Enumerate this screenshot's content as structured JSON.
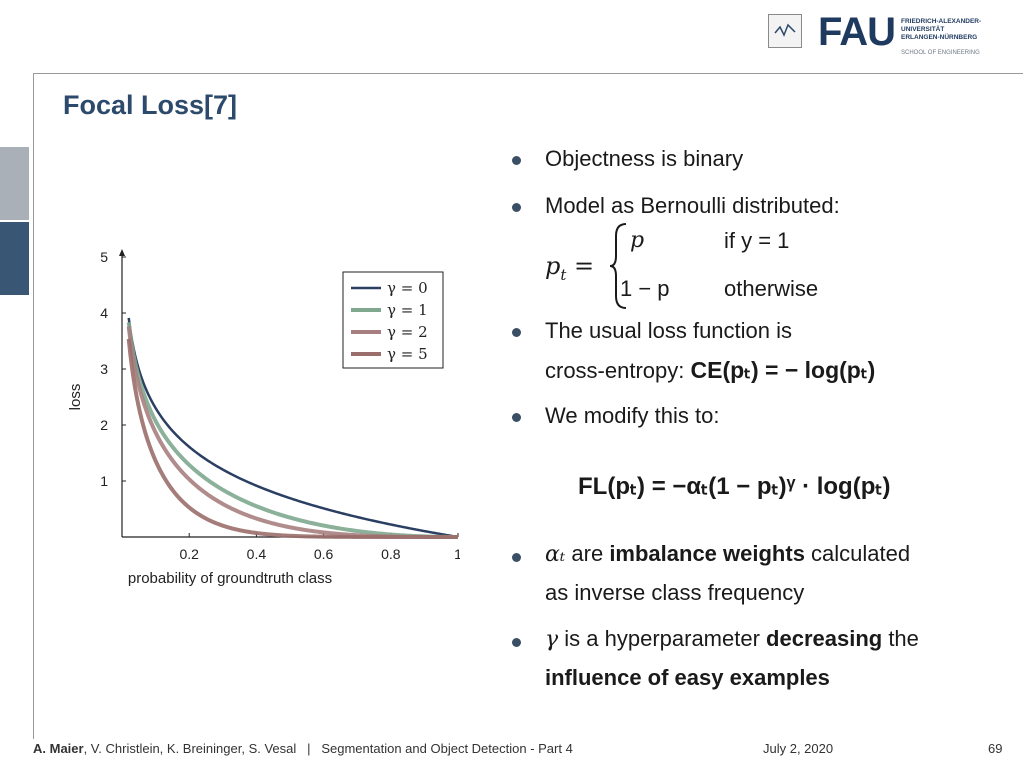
{
  "logo": {
    "text": "FAU",
    "sub": "FRIEDRICH-ALEXANDER-\nUNIVERSITÄT\nERLANGEN-NÜRNBERG",
    "school": "SCHOOL OF ENGINEERING"
  },
  "slide": {
    "title": "Focal Loss[7]"
  },
  "bullets": {
    "b1": "Objectness is binary",
    "b2": "Model as Bernoulli distributed:",
    "b3_line1": "The usual loss function is",
    "b3_line2": "cross-entropy: ",
    "b4": "We modify this to:",
    "b5_part1": " are ",
    "b5_bold": "imbalance weights",
    "b5_part2": " calculated",
    "b5_line2": "as inverse class frequency",
    "b6_part1": " is a hyperparameter ",
    "b6_bold1": "decreasing",
    "b6_part2": " the",
    "b6_bold2": "influence of easy examples"
  },
  "formulas": {
    "pt_lhs": "p",
    "pt_sub": "t",
    "case1_val": "p",
    "case1_cond": "if y = 1",
    "case2_val": "1 − p",
    "case2_cond": "otherwise",
    "ce": "CE(pₜ) = − log(pₜ)",
    "fl": "FL(pₜ) = −αₜ(1 − pₜ)ᵞ · log(pₜ)",
    "alpha": "αₜ",
    "gamma": "γ"
  },
  "footer": {
    "authors_bold": "A. Maier",
    "authors_rest": ", V. Christlein, K. Breininger, S. Vesal",
    "sep": "|",
    "lecture": "Segmentation and Object Detection - Part 4",
    "date": "July 2, 2020",
    "page": "69"
  },
  "chart_data": {
    "type": "line",
    "xlabel": "probability of groundtruth class",
    "ylabel": "loss",
    "xlim": [
      0,
      1
    ],
    "ylim": [
      0,
      5
    ],
    "x_ticks": [
      "0.2",
      "0.4",
      "0.6",
      "0.8",
      "1"
    ],
    "y_ticks": [
      "1",
      "2",
      "3",
      "4",
      "5"
    ],
    "legend_position": "top-right",
    "series": [
      {
        "name": "γ = 0",
        "gamma": 0,
        "color": "#2b3f63"
      },
      {
        "name": "γ = 1",
        "gamma": 1,
        "color": "#7fa88f"
      },
      {
        "name": "γ = 2",
        "gamma": 2,
        "color": "#a77f80"
      },
      {
        "name": "γ = 5",
        "gamma": 5,
        "color": "#9a6e6a"
      }
    ]
  }
}
